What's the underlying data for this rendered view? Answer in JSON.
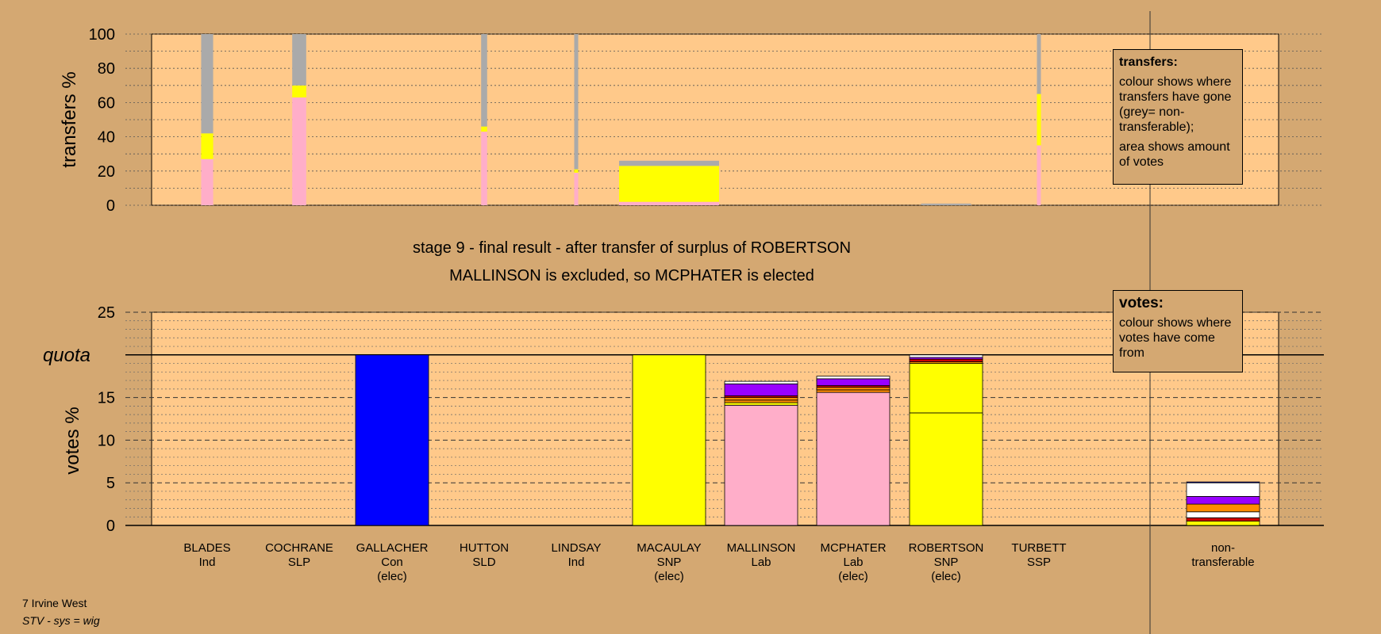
{
  "chart_data": [
    {
      "type": "bar",
      "name": "transfers-chart",
      "ylabel": "transfers %",
      "ylim": [
        0,
        100
      ],
      "yticks": [
        0,
        20,
        40,
        60,
        80,
        100
      ],
      "description_columns": [
        "BLADES",
        "COCHRANE",
        "GALLACHER",
        "HUTTON",
        "LINDSAY",
        "MACAULAY",
        "MALLINSON",
        "MCPHATER",
        "ROBERTSON",
        "TURBETT"
      ],
      "bars": [
        {
          "candidate": "BLADES",
          "width_frac": 0.12,
          "segments": [
            {
              "color": "#ffaec9",
              "value": 27
            },
            {
              "color": "#ffff00",
              "value": 15
            },
            {
              "color": "#aaaaaa",
              "value": 58
            }
          ]
        },
        {
          "candidate": "COCHRANE",
          "width_frac": 0.14,
          "segments": [
            {
              "color": "#ffaec9",
              "value": 63
            },
            {
              "color": "#ffff00",
              "value": 7
            },
            {
              "color": "#aaaaaa",
              "value": 30
            }
          ]
        },
        {
          "candidate": "HUTTON",
          "width_frac": 0.06,
          "segments": [
            {
              "color": "#ffaec9",
              "value": 43
            },
            {
              "color": "#ffff00",
              "value": 3
            },
            {
              "color": "#aaaaaa",
              "value": 54
            }
          ]
        },
        {
          "candidate": "LINDSAY",
          "width_frac": 0.04,
          "segments": [
            {
              "color": "#ffaec9",
              "value": 19
            },
            {
              "color": "#ffff00",
              "value": 2
            },
            {
              "color": "#aaaaaa",
              "value": 79
            }
          ]
        },
        {
          "candidate": "MACAULAY",
          "width_frac": 1.0,
          "segments": [
            {
              "color": "#ffaec9",
              "value": 2
            },
            {
              "color": "#ffff00",
              "value": 21
            },
            {
              "color": "#aaaaaa",
              "value": 3
            }
          ]
        },
        {
          "candidate": "ROBERTSON",
          "width_frac": 0.5,
          "segments": [
            {
              "color": "#aaaaaa",
              "value": 1
            }
          ]
        },
        {
          "candidate": "TURBETT",
          "width_frac": 0.04,
          "segments": [
            {
              "color": "#ffaec9",
              "value": 35
            },
            {
              "color": "#ffff00",
              "value": 30
            },
            {
              "color": "#aaaaaa",
              "value": 35
            }
          ]
        }
      ]
    },
    {
      "type": "bar",
      "name": "votes-chart",
      "ylabel": "votes %",
      "ylim": [
        0,
        25
      ],
      "yticks": [
        0,
        5,
        10,
        15,
        20,
        25
      ],
      "quota": 20,
      "quota_label": "quota",
      "categories": [
        {
          "name": "BLADES",
          "party": "Ind",
          "status": ""
        },
        {
          "name": "COCHRANE",
          "party": "SLP",
          "status": ""
        },
        {
          "name": "GALLACHER",
          "party": "Con",
          "status": "(elec)"
        },
        {
          "name": "HUTTON",
          "party": "SLD",
          "status": ""
        },
        {
          "name": "LINDSAY",
          "party": "Ind",
          "status": ""
        },
        {
          "name": "MACAULAY",
          "party": "SNP",
          "status": "(elec)"
        },
        {
          "name": "MALLINSON",
          "party": "Lab",
          "status": ""
        },
        {
          "name": "MCPHATER",
          "party": "Lab",
          "status": "(elec)"
        },
        {
          "name": "ROBERTSON",
          "party": "SNP",
          "status": "(elec)"
        },
        {
          "name": "TURBETT",
          "party": "SSP",
          "status": ""
        }
      ],
      "nontransferable_label_1": "non-",
      "nontransferable_label_2": "transferable",
      "stacks": [
        {
          "candidate": "GALLACHER",
          "segments": [
            {
              "color": "#0000ff",
              "value": 20
            }
          ]
        },
        {
          "candidate": "MACAULAY",
          "segments": [
            {
              "color": "#ffff00",
              "value": 20
            }
          ]
        },
        {
          "candidate": "MALLINSON",
          "segments": [
            {
              "color": "#ffaec9",
              "value": 14.1
            },
            {
              "color": "#ffff00",
              "value": 0.3
            },
            {
              "color": "#ff8c00",
              "value": 0.3
            },
            {
              "color": "#ff8c00",
              "value": 0.3
            },
            {
              "color": "#cc0000",
              "value": 0.2
            },
            {
              "color": "#9900ff",
              "value": 1.4
            },
            {
              "color": "#ffffff",
              "value": 0.3
            }
          ]
        },
        {
          "candidate": "MCPHATER",
          "segments": [
            {
              "color": "#ffaec9",
              "value": 15.6
            },
            {
              "color": "#ff8c00",
              "value": 0.3
            },
            {
              "color": "#ff8c00",
              "value": 0.3
            },
            {
              "color": "#cc0000",
              "value": 0.2
            },
            {
              "color": "#9900ff",
              "value": 0.8
            },
            {
              "color": "#ffffff",
              "value": 0.3
            }
          ]
        },
        {
          "candidate": "ROBERTSON",
          "segments": [
            {
              "color": "#ffff00",
              "value": 13.2
            },
            {
              "color": "#ffff00",
              "value": 5.8
            },
            {
              "color": "#ff8c00",
              "value": 0.2
            },
            {
              "color": "#cc0000",
              "value": 0.3
            },
            {
              "color": "#9900ff",
              "value": 0.2
            },
            {
              "color": "#ffffff",
              "value": 0.3
            }
          ]
        },
        {
          "candidate": "non-transferable",
          "segments": [
            {
              "color": "#ffff00",
              "value": 0.5
            },
            {
              "color": "#cc0000",
              "value": 0.4
            },
            {
              "color": "#ffffff",
              "value": 0.7
            },
            {
              "color": "#ff8c00",
              "value": 0.9
            },
            {
              "color": "#9900ff",
              "value": 0.9
            },
            {
              "color": "#ffffff",
              "value": 1.6
            },
            {
              "color": "#0000ff",
              "value": 0.1
            }
          ]
        }
      ]
    }
  ],
  "caption": {
    "line1": "stage 9 - final result - after transfer of surplus of ROBERTSON",
    "line2": "MALLINSON is excluded, so MCPHATER is elected"
  },
  "legend_transfers": {
    "title": "transfers:",
    "para1": "colour shows where transfers have gone (grey= non-transferable);",
    "para2": "area shows amount of votes"
  },
  "legend_votes": {
    "title": "votes:",
    "para1": "colour shows where votes have come from"
  },
  "footer": {
    "line1": "7 Irvine West",
    "line2": "STV - sys = wig"
  },
  "colors": {
    "background": "#d4a872",
    "plot_area": "#ffc98a"
  }
}
